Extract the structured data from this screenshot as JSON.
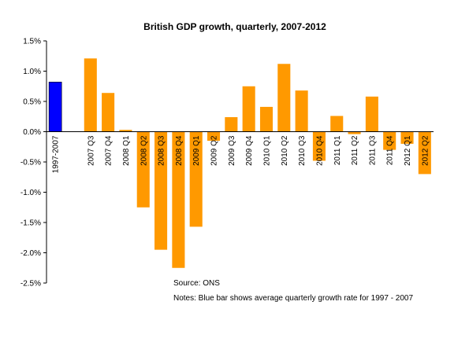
{
  "chart_data": {
    "type": "bar",
    "title": "British GDP growth, quarterly, 2007-2012",
    "xlabel": "",
    "ylabel": "",
    "ylim": [
      -2.5,
      1.5
    ],
    "yticks": [
      "1.5%",
      "1.0%",
      "0.5%",
      "0.0%",
      "-0.5%",
      "-1.0%",
      "-1.5%",
      "-2.0%",
      "-2.5%"
    ],
    "ytick_values": [
      1.5,
      1.0,
      0.5,
      0.0,
      -0.5,
      -1.0,
      -1.5,
      -2.0,
      -2.5
    ],
    "grid": false,
    "legend": "none",
    "categories": [
      "1997-2007",
      "",
      "2007 Q3",
      "2007 Q4",
      "2008 Q1",
      "2008 Q2",
      "2008 Q3",
      "2008 Q4",
      "2009 Q1",
      "2009 Q2",
      "2009 Q3",
      "2009 Q4",
      "2010 Q1",
      "2010 Q2",
      "2010 Q3",
      "2010 Q4",
      "2011 Q1",
      "2011 Q2",
      "2011 Q3",
      "2011 Q4",
      "2012 Q1",
      "2012 Q2"
    ],
    "values": [
      0.82,
      null,
      1.21,
      0.64,
      0.03,
      -1.25,
      -1.95,
      -2.25,
      -1.57,
      -0.15,
      0.24,
      0.75,
      0.41,
      1.12,
      0.68,
      -0.48,
      0.26,
      -0.04,
      0.58,
      -0.3,
      -0.2,
      -0.7
    ],
    "colors": [
      "#0000FF",
      null,
      "#FF9900",
      "#FF9900",
      "#FF9900",
      "#FF9900",
      "#FF9900",
      "#FF9900",
      "#FF9900",
      "#FF9900",
      "#FF9900",
      "#FF9900",
      "#FF9900",
      "#FF9900",
      "#FF9900",
      "#FF9900",
      "#FF9900",
      "#FF9900",
      "#FF9900",
      "#FF9900",
      "#FF9900",
      "#FF9900"
    ],
    "source": "Source:  ONS",
    "notes": "Notes:  Blue bar shows average quarterly growth rate for 1997 - 2007"
  }
}
